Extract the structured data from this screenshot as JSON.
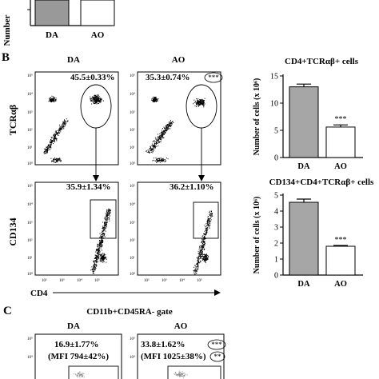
{
  "panel_a": {
    "y_label": "Number",
    "categories": [
      "DA",
      "AO"
    ],
    "colors": {
      "DA": "#999999",
      "AO": "#ffffff"
    }
  },
  "panel_b": {
    "letter": "B",
    "columns": [
      "DA",
      "AO"
    ],
    "y_axis_top": "TCRαβ",
    "y_axis_bottom": "CD134",
    "x_axis": "CD4",
    "gate_top": {
      "DA": "45.5±0.33%",
      "AO": "35.3±0.74%",
      "AO_sig": "***"
    },
    "gate_bottom": {
      "DA": "35.9±1.34%",
      "AO": "36.2±1.10%"
    },
    "tick_labels": [
      "10⁵",
      "10⁴",
      "10³",
      "10²",
      "10¹",
      "10⁰"
    ]
  },
  "chart_data": [
    {
      "type": "bar",
      "title": "CD4+TCRαβ+ cells",
      "ylabel": "Number of cells (x 10⁶)",
      "categories": [
        "DA",
        "AO"
      ],
      "values": [
        13.0,
        5.6
      ],
      "errors": [
        0.5,
        0.4
      ],
      "ylim": [
        0,
        15
      ],
      "yticks": [
        "0",
        "5",
        "10",
        "15"
      ],
      "annotation": "***",
      "colors": [
        "#a6a6a6",
        "#ffffff"
      ]
    },
    {
      "type": "bar",
      "title": "CD134+CD4+TCRαβ+ cells",
      "ylabel": "Number of cells (x 10⁶)",
      "categories": [
        "DA",
        "AO"
      ],
      "values": [
        4.55,
        1.8
      ],
      "errors": [
        0.2,
        0.05
      ],
      "ylim": [
        0,
        5
      ],
      "yticks": [
        "0",
        "1",
        "2",
        "3",
        "4",
        "5"
      ],
      "annotation": "***",
      "colors": [
        "#a6a6a6",
        "#ffffff"
      ]
    }
  ],
  "panel_c": {
    "letter": "C",
    "gate_title": "CD11b+CD45RA- gate",
    "columns": [
      "DA",
      "AO"
    ],
    "DA_pct": "16.9±1.77%",
    "DA_mfi": "(MFI 794±42%)",
    "AO_pct": "33.8±1.62%",
    "AO_mfi": "(MFI 1025±38%)",
    "AO_pct_sig": "***",
    "AO_mfi_sig": "**",
    "tick_labels": [
      "10⁵",
      "10⁴"
    ]
  }
}
